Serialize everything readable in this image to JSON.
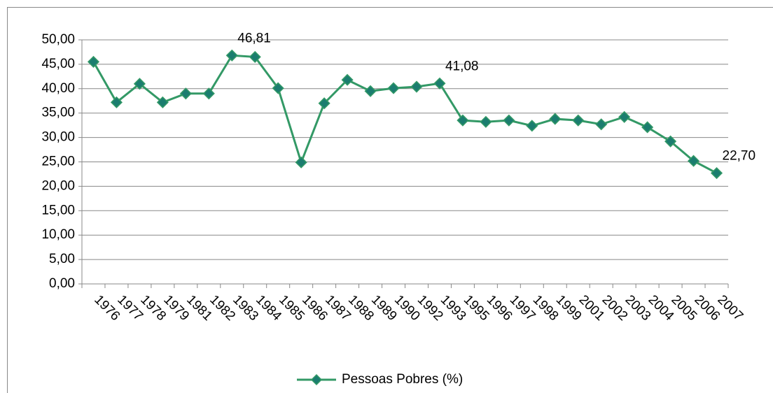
{
  "chart_data": {
    "type": "line",
    "categories": [
      "1976",
      "1977",
      "1978",
      "1979",
      "1981",
      "1982",
      "1983",
      "1984",
      "1985",
      "1986",
      "1987",
      "1988",
      "1989",
      "1990",
      "1992",
      "1993",
      "1995",
      "1996",
      "1997",
      "1998",
      "1999",
      "2001",
      "2002",
      "2003",
      "2004",
      "2005",
      "2006",
      "2007"
    ],
    "series": [
      {
        "name": "Pessoas Pobres (%)",
        "color": "#339966",
        "marker_color": "#1b7d6f",
        "values": [
          45.5,
          37.2,
          41.0,
          37.2,
          39.0,
          39.0,
          46.81,
          46.5,
          40.1,
          24.9,
          37.0,
          41.8,
          39.5,
          40.1,
          40.4,
          41.08,
          33.5,
          33.2,
          33.5,
          32.4,
          33.8,
          33.5,
          32.7,
          34.2,
          32.1,
          29.2,
          25.2,
          22.7
        ],
        "value_labels": [
          null,
          null,
          null,
          null,
          null,
          null,
          "46,81",
          null,
          null,
          null,
          null,
          null,
          null,
          null,
          null,
          "41,08",
          null,
          null,
          null,
          null,
          null,
          null,
          null,
          null,
          null,
          null,
          null,
          "22,70"
        ]
      }
    ],
    "ylim": [
      0,
      50
    ],
    "yticks": [
      {
        "value": 0,
        "label": "0,00"
      },
      {
        "value": 5,
        "label": "5,00"
      },
      {
        "value": 10,
        "label": "10,00"
      },
      {
        "value": 15,
        "label": "15,00"
      },
      {
        "value": 20,
        "label": "20,00"
      },
      {
        "value": 25,
        "label": "25,00"
      },
      {
        "value": 30,
        "label": "30,00"
      },
      {
        "value": 35,
        "label": "35,00"
      },
      {
        "value": 40,
        "label": "40,00"
      },
      {
        "value": 45,
        "label": "45,00"
      },
      {
        "value": 50,
        "label": "50,00"
      }
    ],
    "grid": true,
    "legend": "bottom"
  }
}
